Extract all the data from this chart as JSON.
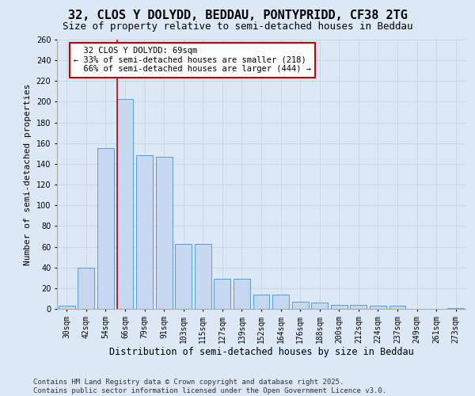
{
  "title": "32, CLOS Y DOLYDD, BEDDAU, PONTYPRIDD, CF38 2TG",
  "subtitle": "Size of property relative to semi-detached houses in Beddau",
  "xlabel": "Distribution of semi-detached houses by size in Beddau",
  "ylabel": "Number of semi-detached properties",
  "categories": [
    "30sqm",
    "42sqm",
    "54sqm",
    "66sqm",
    "79sqm",
    "91sqm",
    "103sqm",
    "115sqm",
    "127sqm",
    "139sqm",
    "152sqm",
    "164sqm",
    "176sqm",
    "188sqm",
    "200sqm",
    "212sqm",
    "224sqm",
    "237sqm",
    "249sqm",
    "261sqm",
    "273sqm"
  ],
  "values": [
    3,
    40,
    155,
    203,
    148,
    147,
    63,
    63,
    29,
    29,
    14,
    14,
    7,
    6,
    4,
    4,
    3,
    3,
    0,
    0,
    1
  ],
  "bar_color": "#c5d8f0",
  "bar_edge_color": "#5a9ad4",
  "property_label": "32 CLOS Y DOLYDD: 69sqm",
  "smaller_pct": "33%",
  "smaller_count": 218,
  "larger_pct": "66%",
  "larger_count": 444,
  "annotation_box_color": "#ffffff",
  "annotation_box_edge": "#cc0000",
  "vline_color": "#cc0000",
  "grid_color": "#c8d8e8",
  "background_color": "#dce8f5",
  "plot_background": "#dce8f5",
  "footer": "Contains HM Land Registry data © Crown copyright and database right 2025.\nContains public sector information licensed under the Open Government Licence v3.0.",
  "ylim": [
    0,
    260
  ],
  "yticks": [
    0,
    20,
    40,
    60,
    80,
    100,
    120,
    140,
    160,
    180,
    200,
    220,
    240,
    260
  ],
  "title_fontsize": 11,
  "subtitle_fontsize": 9,
  "axis_fontsize": 8,
  "tick_fontsize": 7,
  "footer_fontsize": 6.5,
  "ann_fontsize": 7.5,
  "vline_x_index": 3
}
